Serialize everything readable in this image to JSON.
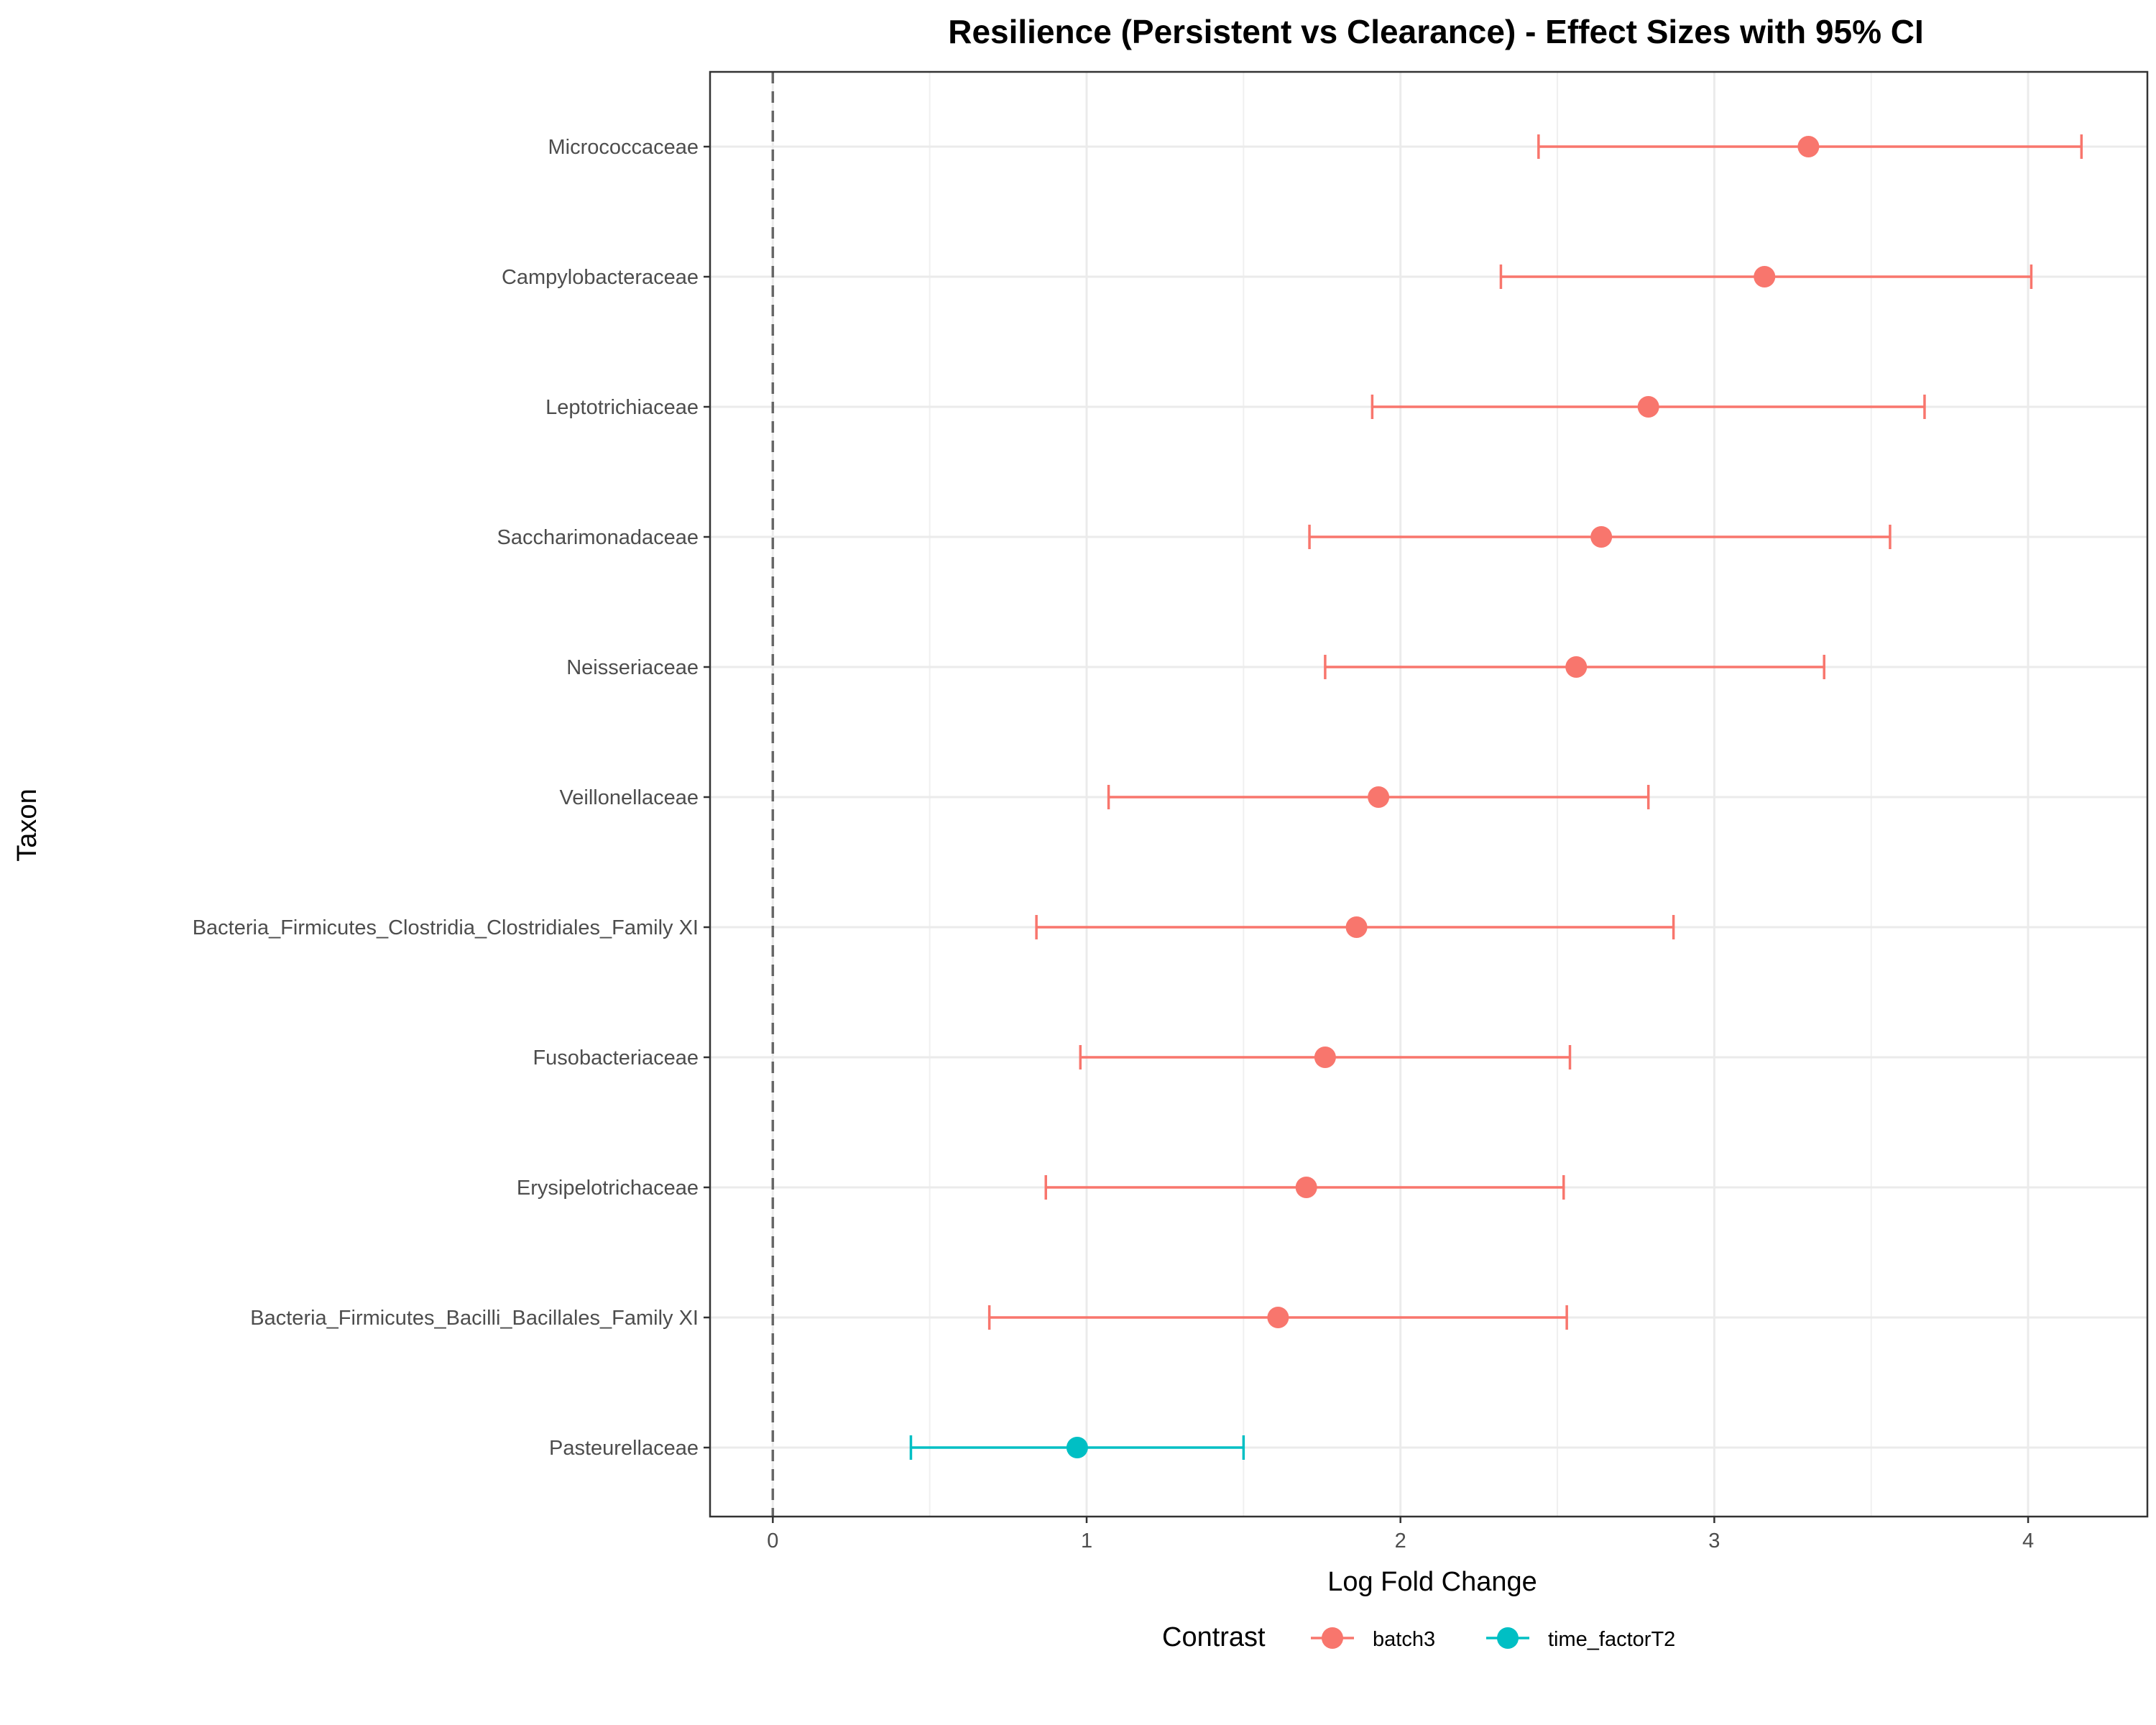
{
  "chart_data": {
    "type": "scatter",
    "title": "Resilience (Persistent vs Clearance) - Effect Sizes with 95% CI",
    "xlabel": "Log Fold Change",
    "ylabel": "Taxon",
    "xlim": [
      -0.2,
      4.38
    ],
    "x_ticks": [
      0,
      1,
      2,
      3,
      4
    ],
    "reference_line": {
      "x": 0,
      "style": "dashed",
      "color": "#666666"
    },
    "grid": true,
    "legend": {
      "title": "Contrast",
      "position": "bottom"
    },
    "series": [
      {
        "name": "batch3",
        "color": "#F8766D"
      },
      {
        "name": "time_factorT2",
        "color": "#00BFC4"
      }
    ],
    "points": [
      {
        "taxon": "Micrococcaceae",
        "estimate": 3.3,
        "ci_low": 2.44,
        "ci_high": 4.17,
        "contrast": "batch3"
      },
      {
        "taxon": "Campylobacteraceae",
        "estimate": 3.16,
        "ci_low": 2.32,
        "ci_high": 4.01,
        "contrast": "batch3"
      },
      {
        "taxon": "Leptotrichiaceae",
        "estimate": 2.79,
        "ci_low": 1.91,
        "ci_high": 3.67,
        "contrast": "batch3"
      },
      {
        "taxon": "Saccharimonadaceae",
        "estimate": 2.64,
        "ci_low": 1.71,
        "ci_high": 3.56,
        "contrast": "batch3"
      },
      {
        "taxon": "Neisseriaceae",
        "estimate": 2.56,
        "ci_low": 1.76,
        "ci_high": 3.35,
        "contrast": "batch3"
      },
      {
        "taxon": "Veillonellaceae",
        "estimate": 1.93,
        "ci_low": 1.07,
        "ci_high": 2.79,
        "contrast": "batch3"
      },
      {
        "taxon": "Bacteria_Firmicutes_Clostridia_Clostridiales_Family XI",
        "estimate": 1.86,
        "ci_low": 0.84,
        "ci_high": 2.87,
        "contrast": "batch3"
      },
      {
        "taxon": "Fusobacteriaceae",
        "estimate": 1.76,
        "ci_low": 0.98,
        "ci_high": 2.54,
        "contrast": "batch3"
      },
      {
        "taxon": "Erysipelotrichaceae",
        "estimate": 1.7,
        "ci_low": 0.87,
        "ci_high": 2.52,
        "contrast": "batch3"
      },
      {
        "taxon": "Bacteria_Firmicutes_Bacilli_Bacillales_Family XI",
        "estimate": 1.61,
        "ci_low": 0.69,
        "ci_high": 2.53,
        "contrast": "batch3"
      },
      {
        "taxon": "Pasteurellaceae",
        "estimate": 0.97,
        "ci_low": 0.44,
        "ci_high": 1.5,
        "contrast": "time_factorT2"
      }
    ]
  }
}
